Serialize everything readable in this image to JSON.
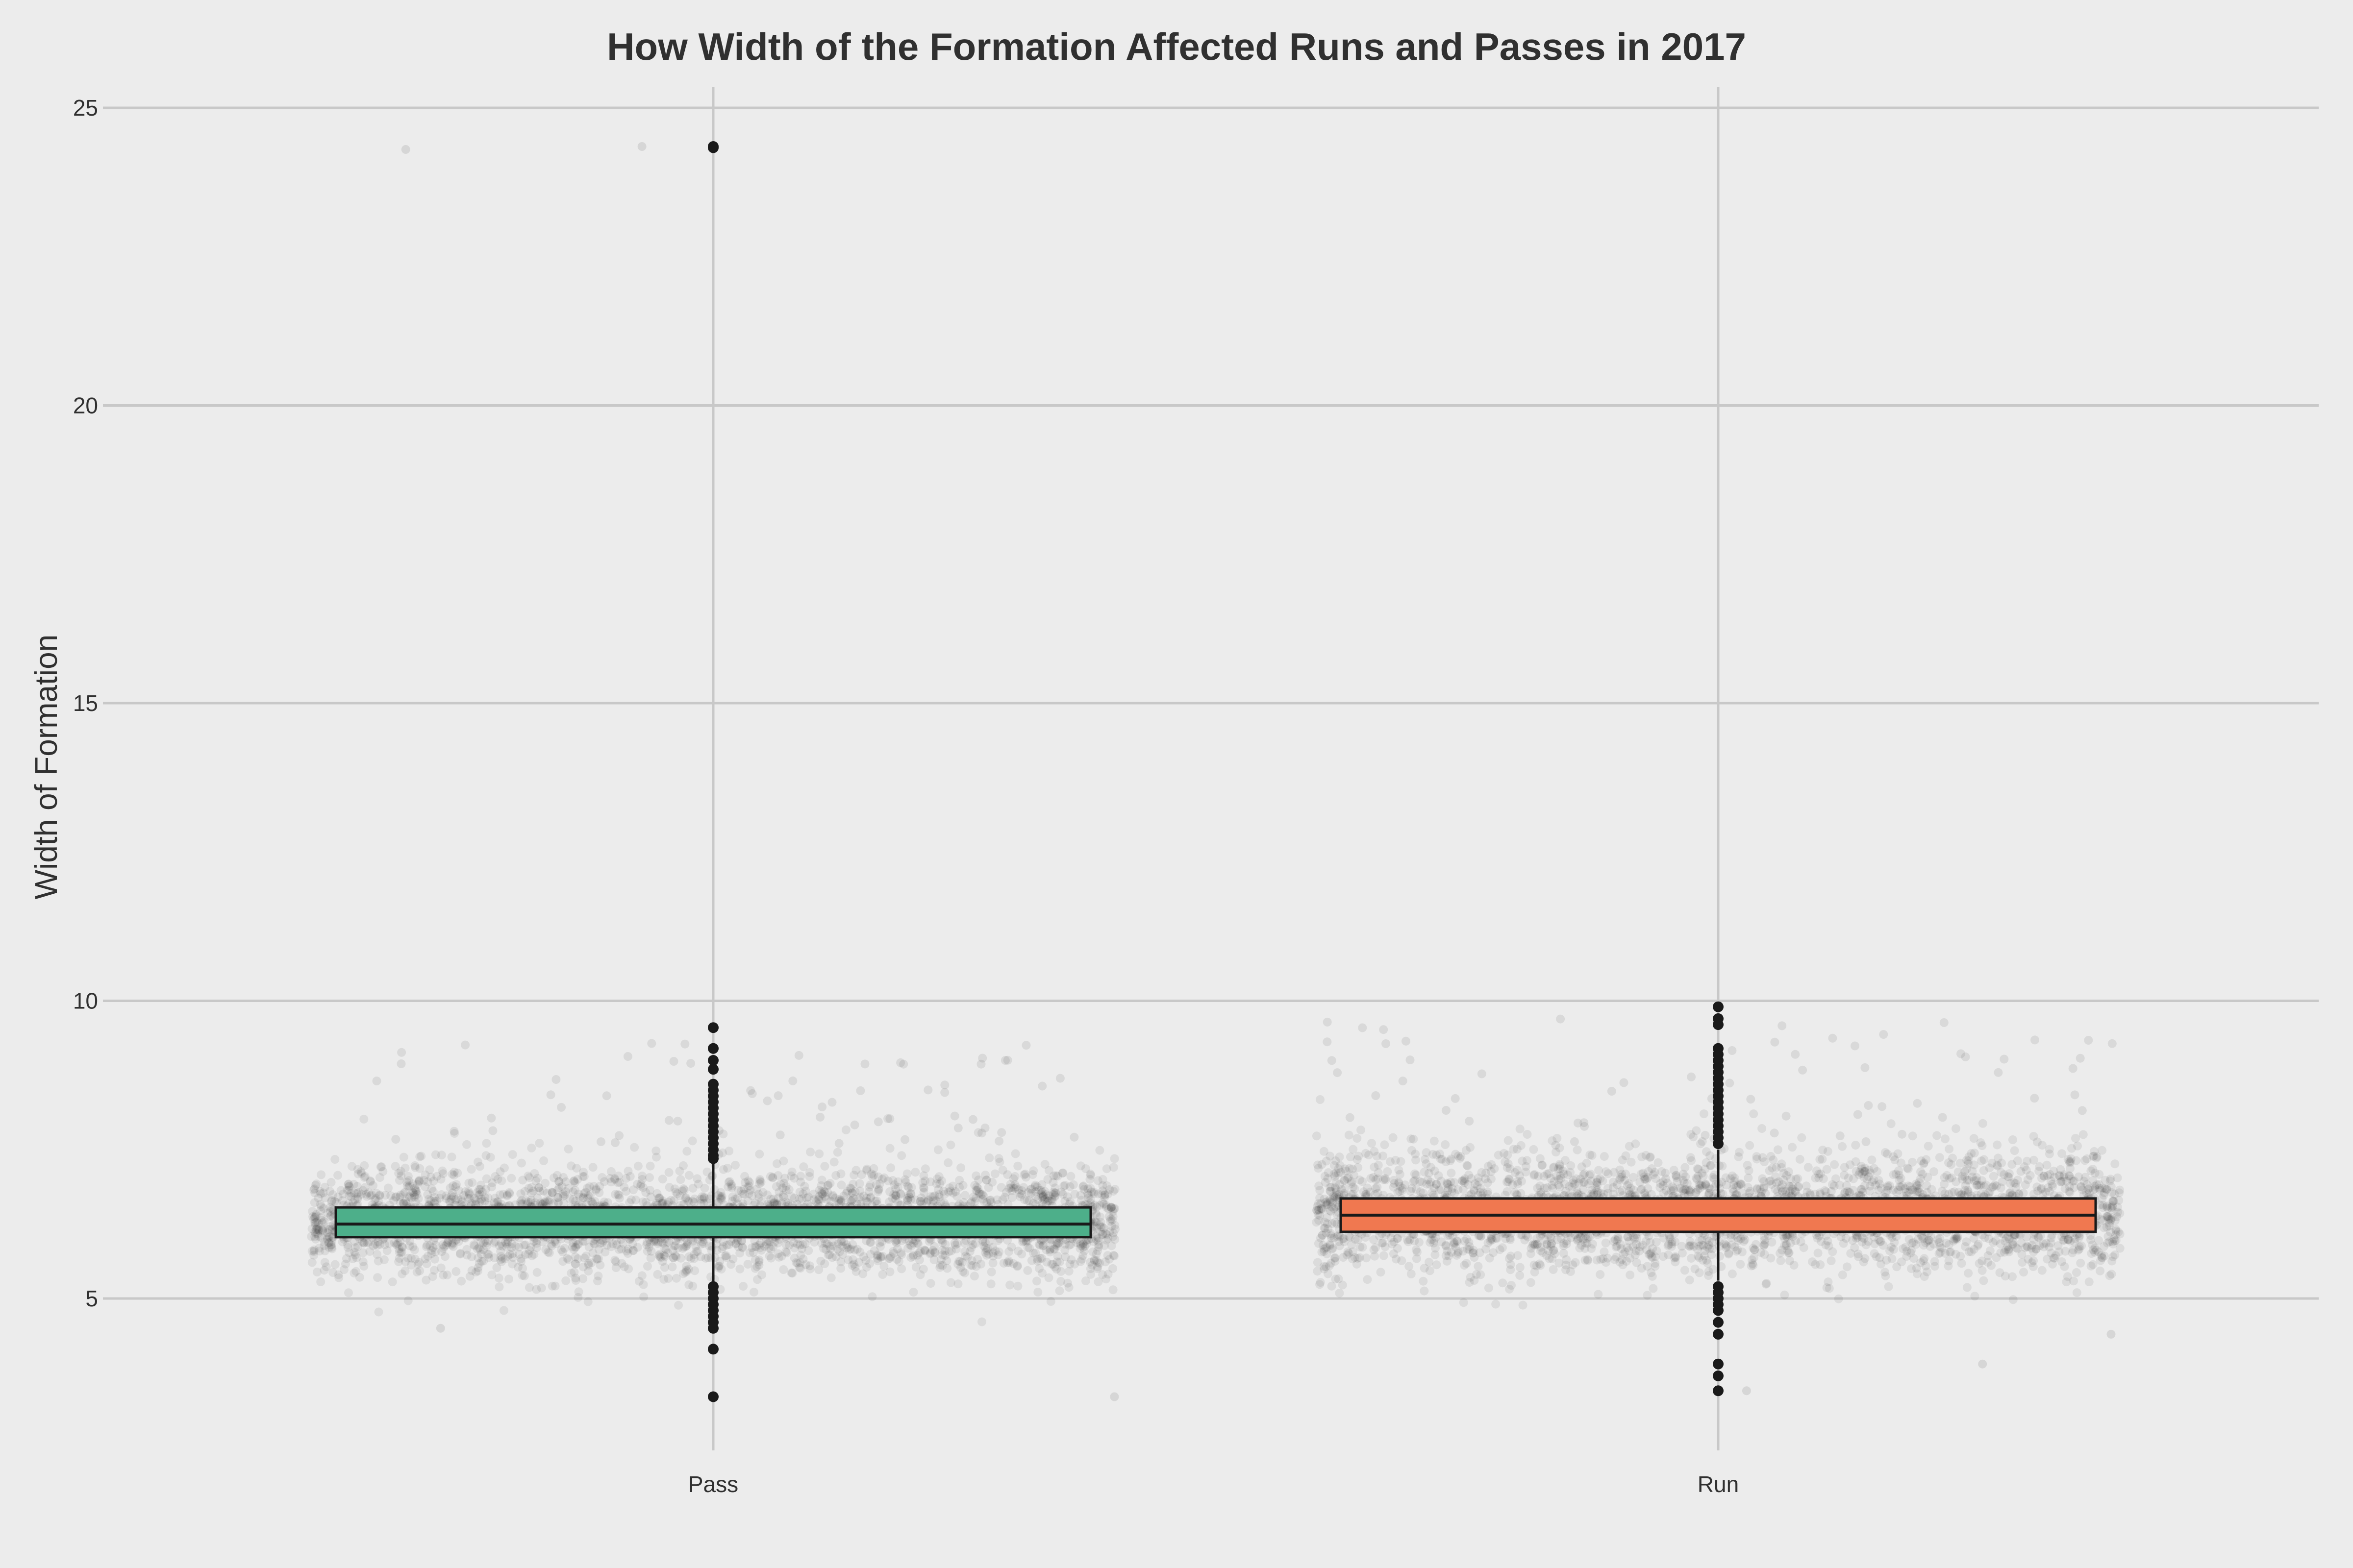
{
  "chart_data": {
    "type": "box",
    "title": "How Width of the Formation Affected Runs and Passes in 2017",
    "xlabel": "",
    "ylabel": "Width of Formation",
    "ylim": [
      2.3,
      25.6
    ],
    "yticks": [
      5,
      10,
      15,
      20,
      25
    ],
    "grid": true,
    "categories": [
      "Pass",
      "Run"
    ],
    "boxes": [
      {
        "category": "Pass",
        "color": "#4daf8a",
        "q1": 6.03,
        "median": 6.25,
        "q3": 6.53,
        "whisker_low": 5.25,
        "whisker_high": 7.28,
        "outliers": [
          24.33,
          24.35,
          9.55,
          9.2,
          9.0,
          8.85,
          8.6,
          8.5,
          8.4,
          8.3,
          8.2,
          8.1,
          8.0,
          7.9,
          7.8,
          7.7,
          7.6,
          7.5,
          7.4,
          7.35,
          5.2,
          5.1,
          5.0,
          4.9,
          4.8,
          4.7,
          4.6,
          4.5,
          4.15,
          3.35
        ],
        "jitter_summary": {
          "center": 6.3,
          "spread": 0.45,
          "range": [
            3.35,
            24.35
          ]
        }
      },
      {
        "category": "Run",
        "color": "#f07850",
        "q1": 6.12,
        "median": 6.4,
        "q3": 6.68,
        "whisker_low": 5.3,
        "whisker_high": 7.5,
        "outliers": [
          9.9,
          9.7,
          9.6,
          9.2,
          9.1,
          9.0,
          8.9,
          8.8,
          8.7,
          8.6,
          8.5,
          8.4,
          8.3,
          8.2,
          8.1,
          8.0,
          7.9,
          7.8,
          7.7,
          7.6,
          5.2,
          5.1,
          5.0,
          4.9,
          4.8,
          4.6,
          4.4,
          3.9,
          3.7,
          3.45
        ],
        "jitter_summary": {
          "center": 6.45,
          "spread": 0.5,
          "range": [
            3.45,
            9.9
          ]
        }
      }
    ]
  }
}
